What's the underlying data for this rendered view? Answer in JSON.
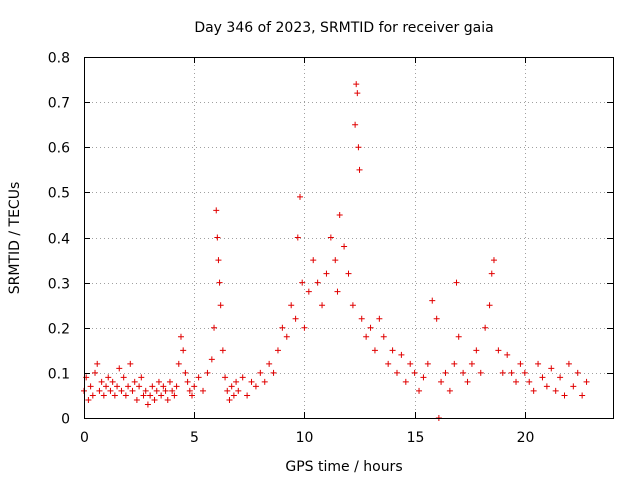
{
  "chart_data": {
    "type": "scatter",
    "title": "Day 346 of 2023, SRMTID for receiver gaia",
    "xlabel": "GPS time / hours",
    "ylabel": "SRMTID / TECUs",
    "xlim": [
      0,
      24
    ],
    "ylim": [
      0,
      0.8
    ],
    "xticks": [
      0,
      5,
      10,
      15,
      20
    ],
    "xtick_labels": [
      "0",
      "5",
      "10",
      "15",
      "20"
    ],
    "yticks": [
      0,
      0.1,
      0.2,
      0.3,
      0.4,
      0.5,
      0.6,
      0.7,
      0.8
    ],
    "ytick_labels": [
      "0",
      "0.1",
      "0.2",
      "0.3",
      "0.4",
      "0.5",
      "0.6",
      "0.7",
      "0.8"
    ],
    "grid": true,
    "marker": "plus",
    "color": "#e00000",
    "series": [
      {
        "name": "SRMTID",
        "points": [
          [
            0.0,
            0.06
          ],
          [
            0.1,
            0.09
          ],
          [
            0.2,
            0.04
          ],
          [
            0.3,
            0.07
          ],
          [
            0.4,
            0.05
          ],
          [
            0.5,
            0.1
          ],
          [
            0.6,
            0.12
          ],
          [
            0.7,
            0.06
          ],
          [
            0.8,
            0.08
          ],
          [
            0.9,
            0.05
          ],
          [
            1.0,
            0.07
          ],
          [
            1.1,
            0.09
          ],
          [
            1.2,
            0.06
          ],
          [
            1.3,
            0.08
          ],
          [
            1.4,
            0.05
          ],
          [
            1.5,
            0.07
          ],
          [
            1.6,
            0.11
          ],
          [
            1.7,
            0.06
          ],
          [
            1.8,
            0.09
          ],
          [
            1.9,
            0.05
          ],
          [
            2.0,
            0.07
          ],
          [
            2.1,
            0.12
          ],
          [
            2.2,
            0.06
          ],
          [
            2.3,
            0.08
          ],
          [
            2.4,
            0.04
          ],
          [
            2.5,
            0.07
          ],
          [
            2.6,
            0.09
          ],
          [
            2.7,
            0.05
          ],
          [
            2.8,
            0.06
          ],
          [
            2.9,
            0.03
          ],
          [
            3.0,
            0.05
          ],
          [
            3.1,
            0.07
          ],
          [
            3.2,
            0.04
          ],
          [
            3.3,
            0.06
          ],
          [
            3.4,
            0.08
          ],
          [
            3.5,
            0.05
          ],
          [
            3.6,
            0.07
          ],
          [
            3.7,
            0.06
          ],
          [
            3.8,
            0.04
          ],
          [
            3.9,
            0.08
          ],
          [
            4.0,
            0.06
          ],
          [
            4.1,
            0.05
          ],
          [
            4.2,
            0.07
          ],
          [
            4.3,
            0.12
          ],
          [
            4.4,
            0.18
          ],
          [
            4.5,
            0.15
          ],
          [
            4.6,
            0.1
          ],
          [
            4.7,
            0.08
          ],
          [
            4.8,
            0.06
          ],
          [
            4.9,
            0.05
          ],
          [
            5.0,
            0.07
          ],
          [
            5.2,
            0.09
          ],
          [
            5.4,
            0.06
          ],
          [
            5.6,
            0.1
          ],
          [
            5.8,
            0.13
          ],
          [
            5.9,
            0.2
          ],
          [
            6.0,
            0.46
          ],
          [
            6.05,
            0.4
          ],
          [
            6.1,
            0.35
          ],
          [
            6.15,
            0.3
          ],
          [
            6.2,
            0.25
          ],
          [
            6.3,
            0.15
          ],
          [
            6.4,
            0.09
          ],
          [
            6.5,
            0.06
          ],
          [
            6.6,
            0.04
          ],
          [
            6.7,
            0.07
          ],
          [
            6.8,
            0.05
          ],
          [
            6.9,
            0.08
          ],
          [
            7.0,
            0.06
          ],
          [
            7.2,
            0.09
          ],
          [
            7.4,
            0.05
          ],
          [
            7.6,
            0.08
          ],
          [
            7.8,
            0.07
          ],
          [
            8.0,
            0.1
          ],
          [
            8.2,
            0.08
          ],
          [
            8.4,
            0.12
          ],
          [
            8.6,
            0.1
          ],
          [
            8.8,
            0.15
          ],
          [
            9.0,
            0.2
          ],
          [
            9.2,
            0.18
          ],
          [
            9.4,
            0.25
          ],
          [
            9.6,
            0.22
          ],
          [
            9.7,
            0.4
          ],
          [
            9.8,
            0.49
          ],
          [
            9.9,
            0.3
          ],
          [
            10.0,
            0.2
          ],
          [
            10.2,
            0.28
          ],
          [
            10.4,
            0.35
          ],
          [
            10.6,
            0.3
          ],
          [
            10.8,
            0.25
          ],
          [
            11.0,
            0.32
          ],
          [
            11.2,
            0.4
          ],
          [
            11.4,
            0.35
          ],
          [
            11.5,
            0.28
          ],
          [
            11.6,
            0.45
          ],
          [
            11.8,
            0.38
          ],
          [
            12.0,
            0.32
          ],
          [
            12.2,
            0.25
          ],
          [
            12.3,
            0.65
          ],
          [
            12.35,
            0.74
          ],
          [
            12.4,
            0.72
          ],
          [
            12.45,
            0.6
          ],
          [
            12.5,
            0.55
          ],
          [
            12.6,
            0.22
          ],
          [
            12.8,
            0.18
          ],
          [
            13.0,
            0.2
          ],
          [
            13.2,
            0.15
          ],
          [
            13.4,
            0.22
          ],
          [
            13.6,
            0.18
          ],
          [
            13.8,
            0.12
          ],
          [
            14.0,
            0.15
          ],
          [
            14.2,
            0.1
          ],
          [
            14.4,
            0.14
          ],
          [
            14.6,
            0.08
          ],
          [
            14.8,
            0.12
          ],
          [
            15.0,
            0.1
          ],
          [
            15.2,
            0.06
          ],
          [
            15.4,
            0.09
          ],
          [
            15.6,
            0.12
          ],
          [
            15.8,
            0.26
          ],
          [
            16.0,
            0.22
          ],
          [
            16.1,
            0.0
          ],
          [
            16.2,
            0.08
          ],
          [
            16.4,
            0.1
          ],
          [
            16.6,
            0.06
          ],
          [
            16.8,
            0.12
          ],
          [
            16.9,
            0.3
          ],
          [
            17.0,
            0.18
          ],
          [
            17.2,
            0.1
          ],
          [
            17.4,
            0.08
          ],
          [
            17.6,
            0.12
          ],
          [
            17.8,
            0.15
          ],
          [
            18.0,
            0.1
          ],
          [
            18.2,
            0.2
          ],
          [
            18.4,
            0.25
          ],
          [
            18.5,
            0.32
          ],
          [
            18.6,
            0.35
          ],
          [
            18.8,
            0.15
          ],
          [
            19.0,
            0.1
          ],
          [
            19.2,
            0.14
          ],
          [
            19.4,
            0.1
          ],
          [
            19.6,
            0.08
          ],
          [
            19.8,
            0.12
          ],
          [
            20.0,
            0.1
          ],
          [
            20.2,
            0.08
          ],
          [
            20.4,
            0.06
          ],
          [
            20.6,
            0.12
          ],
          [
            20.8,
            0.09
          ],
          [
            21.0,
            0.07
          ],
          [
            21.2,
            0.11
          ],
          [
            21.4,
            0.06
          ],
          [
            21.6,
            0.09
          ],
          [
            21.8,
            0.05
          ],
          [
            22.0,
            0.12
          ],
          [
            22.2,
            0.07
          ],
          [
            22.4,
            0.1
          ],
          [
            22.6,
            0.05
          ],
          [
            22.8,
            0.08
          ]
        ]
      }
    ]
  }
}
